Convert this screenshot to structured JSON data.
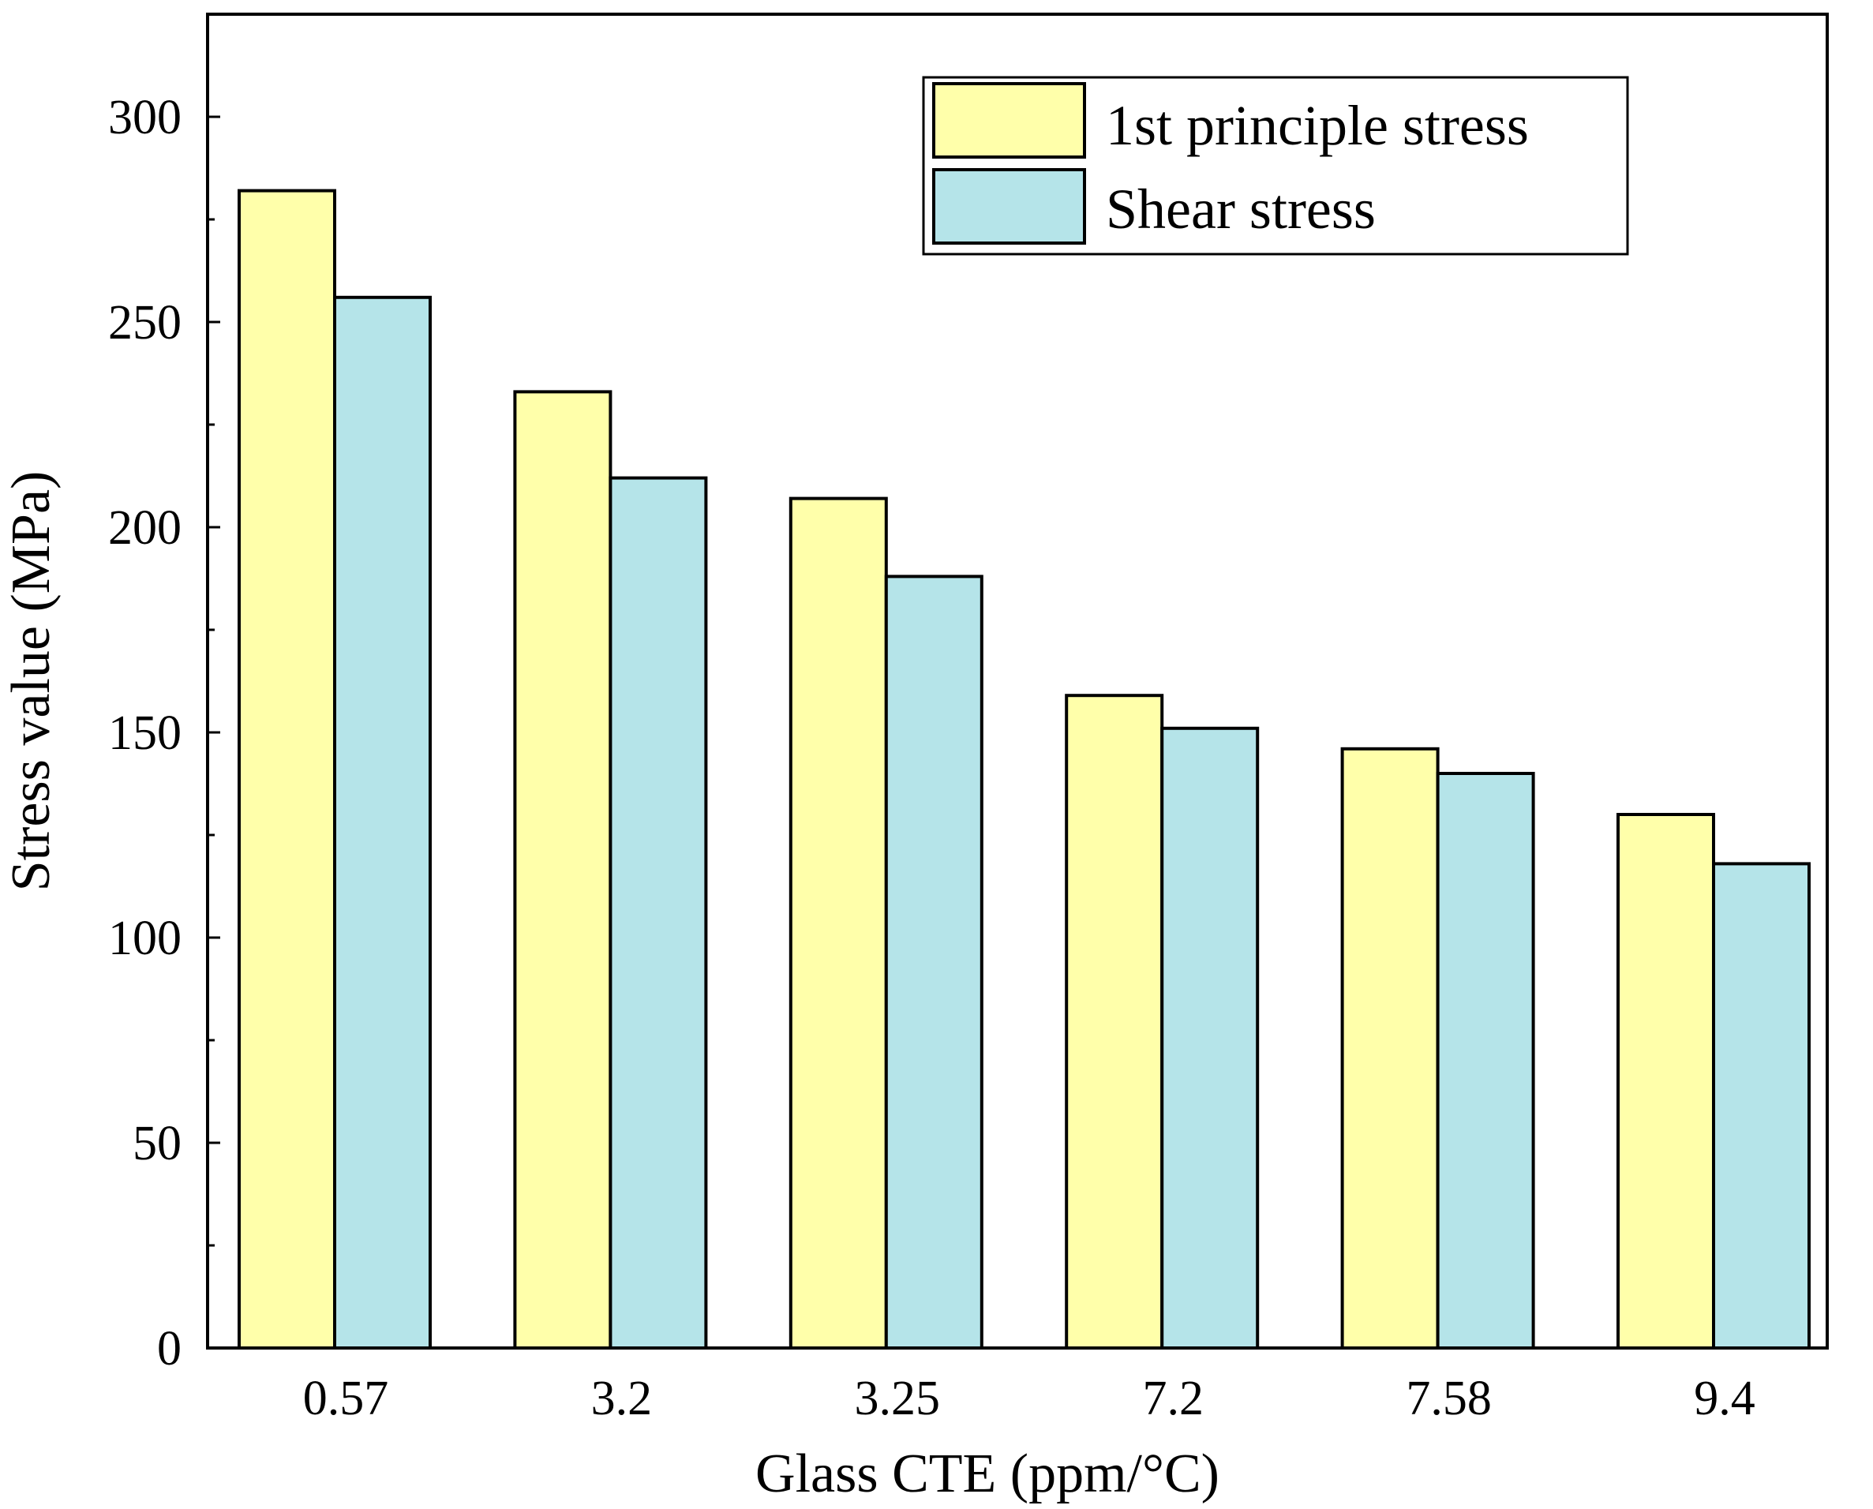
{
  "chart_data": {
    "type": "bar",
    "title": "",
    "xlabel": "Glass CTE (ppm/°C)",
    "ylabel": "Stress value (MPa)",
    "categories": [
      "0.57",
      "3.2",
      "3.25",
      "7.2",
      "7.58",
      "9.4"
    ],
    "series": [
      {
        "name": "1st principle stress",
        "color": "#FFFFAA",
        "values": [
          282,
          233,
          207,
          159,
          146,
          130
        ]
      },
      {
        "name": "Shear stress",
        "color": "#B5E4E9",
        "values": [
          256,
          212,
          188,
          151,
          140,
          118
        ]
      }
    ],
    "ylim": [
      0,
      325
    ],
    "yticks": [
      "0",
      "50",
      "100",
      "150",
      "200",
      "250",
      "300"
    ],
    "ytick_values": [
      0,
      50,
      100,
      150,
      200,
      250,
      300
    ],
    "legend_position": "top-right",
    "grid": false
  }
}
